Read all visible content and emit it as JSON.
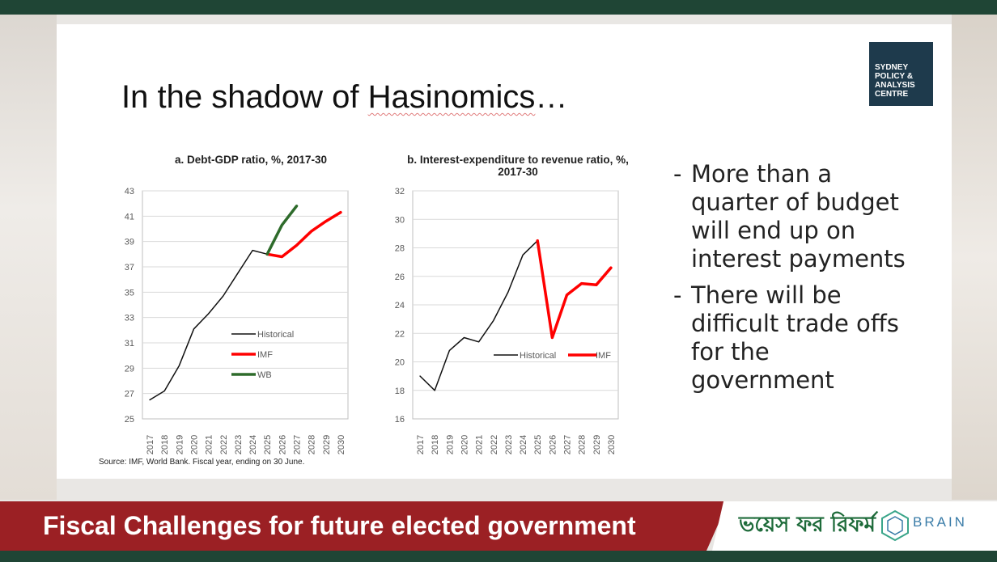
{
  "slide": {
    "title_before": "In the shadow of ",
    "title_underlined": "Hasinomics",
    "title_after": "…",
    "logo_lines": [
      "SYDNEY",
      "POLICY &",
      "ANALYSIS",
      "CENTRE"
    ],
    "source": "Source: IMF, World Bank. Fiscal year, ending on 30 June.",
    "bullets": [
      "More than a quarter of budget will end up on interest payments",
      "There will be difficult trade offs for the government"
    ]
  },
  "footer": {
    "text": "Fiscal Challenges for future elected government",
    "bangla_logo": "ভয়েস ফর রিফর্ম",
    "brain_text": "BRAIN"
  },
  "colors": {
    "historical": "#111111",
    "imf": "#ff0000",
    "wb": "#2e6b2b",
    "footer_red": "#9b2024",
    "dark_green": "#1f4535"
  },
  "chart_data": [
    {
      "type": "line",
      "title": "a.   Debt-GDP ratio, %, 2017-30",
      "x": [
        "2017",
        "2018",
        "2019",
        "2020",
        "2021",
        "2022",
        "2023",
        "2024",
        "2025",
        "2026",
        "2027",
        "2028",
        "2029",
        "2030"
      ],
      "ylim": [
        25,
        43
      ],
      "yticks": [
        25,
        27,
        29,
        31,
        33,
        35,
        37,
        39,
        41,
        43
      ],
      "series": [
        {
          "name": "Historical",
          "color": "#111111",
          "values": [
            26.5,
            27.2,
            29.2,
            32.1,
            33.3,
            34.7,
            36.5,
            38.3,
            38.0,
            null,
            null,
            null,
            null,
            null
          ]
        },
        {
          "name": "IMF",
          "color": "#ff0000",
          "values": [
            null,
            null,
            null,
            null,
            null,
            null,
            null,
            null,
            38.0,
            37.8,
            38.7,
            39.8,
            40.6,
            41.3
          ]
        },
        {
          "name": "WB",
          "color": "#2e6b2b",
          "values": [
            null,
            null,
            null,
            null,
            null,
            null,
            null,
            null,
            38.0,
            40.3,
            41.8,
            null,
            null,
            null
          ]
        }
      ],
      "legend": "center-right"
    },
    {
      "type": "line",
      "title": "b.   Interest-expenditure to revenue ratio, %, 2017-30",
      "x": [
        "2017",
        "2018",
        "2019",
        "2020",
        "2021",
        "2022",
        "2023",
        "2024",
        "2025",
        "2026",
        "2027",
        "2028",
        "2029",
        "2030"
      ],
      "ylim": [
        16,
        32
      ],
      "yticks": [
        16,
        18,
        20,
        22,
        24,
        26,
        28,
        30,
        32
      ],
      "series": [
        {
          "name": "Historical",
          "color": "#111111",
          "values": [
            19.0,
            18.0,
            20.8,
            21.7,
            21.4,
            22.9,
            24.9,
            27.5,
            28.5,
            null,
            null,
            null,
            null,
            null
          ]
        },
        {
          "name": "IMF",
          "color": "#ff0000",
          "values": [
            null,
            null,
            null,
            null,
            null,
            null,
            null,
            null,
            28.5,
            21.7,
            24.7,
            25.5,
            25.4,
            26.6
          ]
        }
      ],
      "legend": "center-right"
    }
  ]
}
